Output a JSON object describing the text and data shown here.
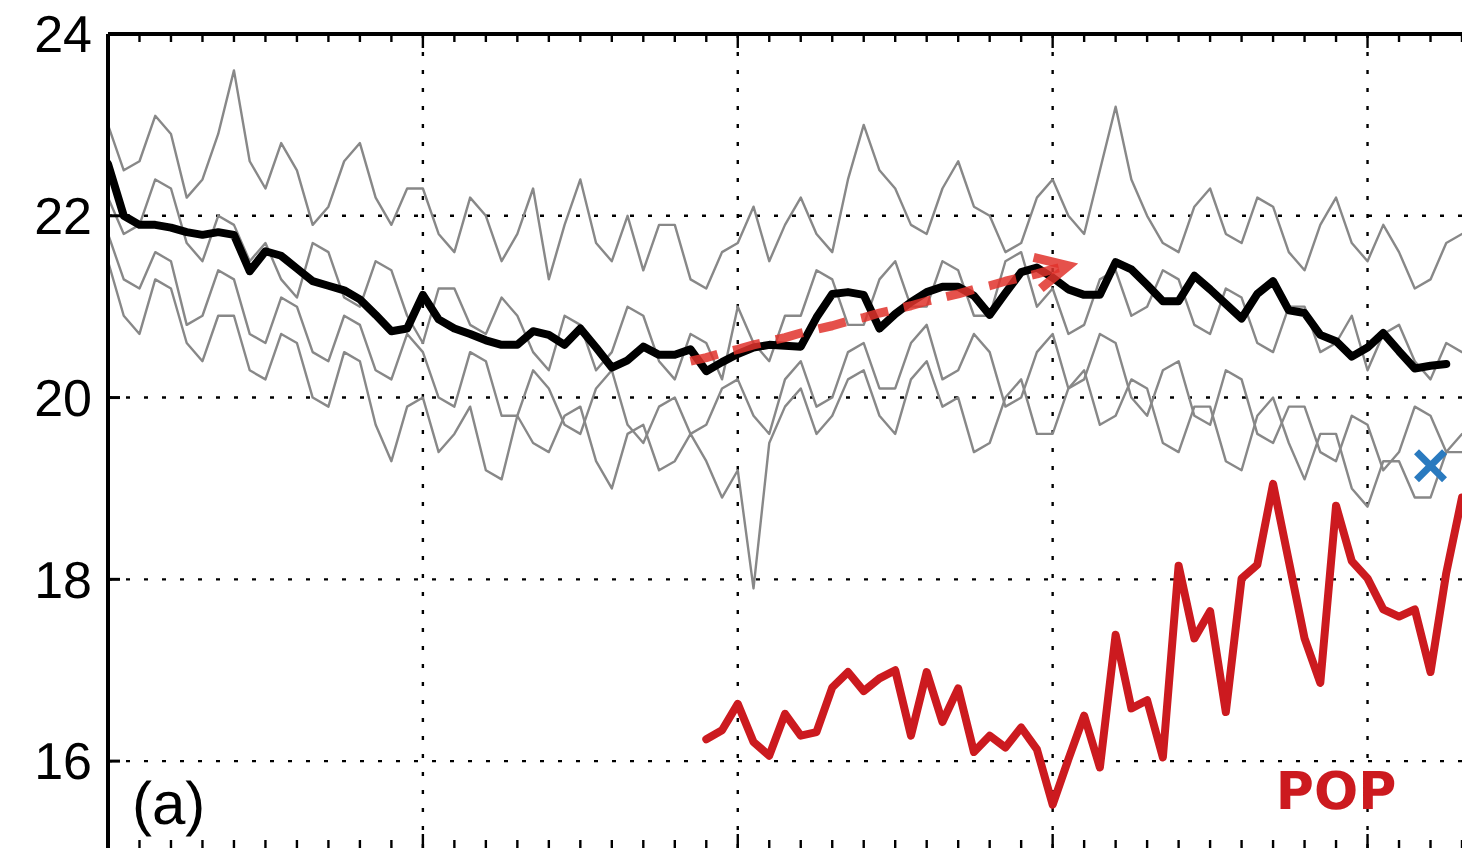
{
  "chart_data": {
    "type": "line",
    "annotations": [
      "(a)"
    ],
    "categories": [
      null,
      null,
      null,
      null,
      null,
      null,
      null,
      null,
      null,
      null,
      null,
      null,
      null,
      null,
      null,
      null,
      null,
      null,
      null,
      null,
      null,
      null,
      null,
      null,
      null,
      null,
      null,
      null,
      null,
      null,
      null,
      null,
      null,
      null,
      null,
      null,
      null,
      null,
      null,
      null,
      null,
      null,
      null,
      null,
      null,
      null,
      null,
      null,
      null,
      null,
      null,
      null,
      null,
      null,
      null,
      null,
      null,
      null,
      null,
      null,
      null,
      null,
      null,
      null,
      null,
      null,
      null,
      null,
      null,
      null,
      null,
      null,
      null,
      null,
      null,
      null,
      null,
      null,
      null,
      null,
      null,
      null,
      null,
      null,
      null,
      null,
      null
    ],
    "series": [
      {
        "color": "#888888",
        "values": [
          23.0,
          22.5,
          22.6,
          23.1,
          22.9,
          22.2,
          22.4,
          22.9,
          23.6,
          22.6,
          22.3,
          22.8,
          22.5,
          21.9,
          22.1,
          22.6,
          22.8,
          22.2,
          21.9,
          22.3,
          22.3,
          21.8,
          21.6,
          22.2,
          22.0,
          21.5,
          21.8,
          22.3,
          21.3,
          21.9,
          22.4,
          21.7,
          21.5,
          22.0,
          21.4,
          21.9,
          21.9,
          21.3,
          21.2,
          21.6,
          21.7,
          22.1,
          21.5,
          21.9,
          22.2,
          21.8,
          21.6,
          22.4,
          23.0,
          22.5,
          22.3,
          21.9,
          21.8,
          22.3,
          22.6,
          22.1,
          22.0,
          21.6,
          21.7,
          22.2,
          22.4,
          22.0,
          21.8,
          22.5,
          23.2,
          22.4,
          22.0,
          21.7,
          21.6,
          22.1,
          22.3,
          21.8,
          21.7,
          22.2,
          22.1,
          21.6,
          21.4,
          21.9,
          22.2,
          21.7,
          21.5,
          21.9,
          21.6,
          21.2,
          21.3,
          21.7,
          21.8
        ]
      },
      {
        "color": "#888888",
        "values": [
          21.8,
          21.3,
          21.2,
          21.6,
          21.5,
          20.8,
          20.9,
          21.4,
          21.3,
          20.7,
          20.6,
          21.1,
          21.0,
          20.5,
          20.4,
          20.9,
          20.8,
          20.3,
          20.2,
          20.7,
          20.5,
          20.0,
          19.9,
          20.5,
          20.4,
          19.8,
          19.8,
          20.3,
          20.1,
          19.7,
          19.6,
          20.1,
          20.3,
          19.7,
          19.5,
          19.9,
          20.0,
          19.6,
          19.7,
          20.1,
          20.2,
          19.8,
          19.6,
          20.2,
          20.4,
          19.9,
          20.0,
          20.5,
          20.6,
          20.1,
          20.1,
          20.6,
          20.8,
          20.2,
          20.3,
          20.7,
          20.5,
          19.9,
          20.0,
          20.5,
          20.7,
          20.1,
          20.2,
          20.7,
          20.6,
          20.0,
          19.8,
          20.3,
          20.4,
          19.8,
          19.7,
          20.3,
          20.2,
          19.6,
          19.5,
          19.9,
          19.9,
          19.4,
          19.3,
          19.8,
          19.7,
          19.2,
          19.4,
          19.9,
          19.8,
          19.4,
          19.6
        ]
      },
      {
        "color": "#888888",
        "values": [
          22.2,
          21.8,
          21.9,
          22.4,
          22.3,
          21.7,
          21.5,
          22.0,
          21.9,
          21.5,
          21.7,
          21.3,
          21.1,
          21.7,
          21.6,
          21.1,
          21.0,
          21.5,
          21.4,
          20.9,
          20.6,
          21.2,
          21.2,
          20.8,
          20.7,
          21.1,
          20.9,
          20.5,
          20.3,
          20.9,
          20.8,
          20.3,
          20.5,
          21.0,
          20.9,
          20.4,
          20.2,
          20.7,
          20.6,
          20.2,
          21.0,
          20.6,
          20.4,
          20.9,
          20.9,
          21.4,
          21.3,
          20.8,
          20.8,
          21.3,
          21.5,
          21.0,
          21.0,
          21.5,
          21.4,
          20.9,
          20.9,
          21.5,
          21.6,
          21.0,
          21.2,
          20.7,
          20.8,
          21.3,
          21.4,
          20.9,
          21.0,
          21.4,
          21.3,
          20.8,
          20.7,
          21.2,
          21.1,
          20.6,
          20.5,
          21.0,
          21.0,
          20.5,
          20.6,
          20.9,
          20.3,
          20.7,
          20.8,
          20.4,
          20.2,
          20.6,
          20.5
        ]
      },
      {
        "color": "#888888",
        "values": [
          21.5,
          20.9,
          20.7,
          21.3,
          21.2,
          20.6,
          20.4,
          20.9,
          20.9,
          20.3,
          20.2,
          20.7,
          20.6,
          20.0,
          19.9,
          20.5,
          20.4,
          19.7,
          19.3,
          19.9,
          20.0,
          19.4,
          19.6,
          19.9,
          19.2,
          19.1,
          19.8,
          19.5,
          19.4,
          19.8,
          19.9,
          19.3,
          19.0,
          19.6,
          19.7,
          19.2,
          19.3,
          19.6,
          19.3,
          18.9,
          19.2,
          17.9,
          19.5,
          19.9,
          20.1,
          19.6,
          19.8,
          20.2,
          20.3,
          19.8,
          19.6,
          20.2,
          20.4,
          19.9,
          20.0,
          19.4,
          19.5,
          20.0,
          20.2,
          19.6,
          19.6,
          20.1,
          20.3,
          19.7,
          19.8,
          20.2,
          20.1,
          19.5,
          19.4,
          19.9,
          19.9,
          19.3,
          19.2,
          19.8,
          20.0,
          19.5,
          19.1,
          19.6,
          19.6,
          19.0,
          18.8,
          19.3,
          19.3,
          18.9,
          18.9,
          19.4,
          19.4
        ]
      },
      {
        "color": "#000000",
        "values": [
          22.57,
          22.0,
          21.9,
          21.9,
          21.87,
          21.82,
          21.79,
          21.82,
          21.79,
          21.39,
          21.61,
          21.56,
          21.42,
          21.28,
          21.23,
          21.18,
          21.08,
          20.91,
          20.73,
          20.76,
          21.13,
          20.86,
          20.76,
          20.7,
          20.63,
          20.58,
          20.58,
          20.73,
          20.69,
          20.58,
          20.76,
          20.55,
          20.33,
          20.41,
          20.56,
          20.47,
          20.47,
          20.53,
          20.29,
          20.39,
          20.48,
          20.55,
          20.58,
          20.57,
          20.56,
          20.88,
          21.14,
          21.16,
          21.13,
          20.76,
          20.92,
          21.05,
          21.16,
          21.22,
          21.22,
          21.12,
          20.91,
          21.15,
          21.38,
          21.43,
          21.32,
          21.19,
          21.13,
          21.13,
          21.49,
          21.41,
          21.24,
          21.06,
          21.06,
          21.34,
          21.19,
          21.03,
          20.87,
          21.14,
          21.28,
          20.96,
          20.93,
          20.69,
          20.62,
          20.45,
          20.55,
          20.71,
          20.51,
          20.32,
          20.35,
          20.37,
          null
        ]
      },
      {
        "name": "POP",
        "color": "#cc1a1f",
        "values": [
          null,
          null,
          null,
          null,
          null,
          null,
          null,
          null,
          null,
          null,
          null,
          null,
          null,
          null,
          null,
          null,
          null,
          null,
          null,
          null,
          null,
          null,
          null,
          null,
          null,
          null,
          null,
          null,
          null,
          null,
          null,
          null,
          null,
          null,
          null,
          null,
          null,
          null,
          16.24,
          16.34,
          16.63,
          16.21,
          16.06,
          16.52,
          16.28,
          16.32,
          16.81,
          16.98,
          16.77,
          16.91,
          17.0,
          16.28,
          16.98,
          16.43,
          16.8,
          16.1,
          16.28,
          16.15,
          16.37,
          16.13,
          15.52,
          16.02,
          16.5,
          15.93,
          17.39,
          16.58,
          16.67,
          16.04,
          18.15,
          17.35,
          17.65,
          16.54,
          18.01,
          18.16,
          19.05,
          18.2,
          17.35,
          16.86,
          18.81,
          18.2,
          18.01,
          17.67,
          17.59,
          17.67,
          16.98,
          18.07,
          18.9
        ]
      },
      {
        "type": "line",
        "line_style": "dashed",
        "color": "#e0332b",
        "values": [
          null,
          null,
          null,
          null,
          null,
          null,
          null,
          null,
          null,
          null,
          null,
          null,
          null,
          null,
          null,
          null,
          null,
          null,
          null,
          null,
          null,
          null,
          null,
          null,
          null,
          null,
          null,
          null,
          null,
          null,
          null,
          null,
          null,
          null,
          null,
          null,
          null,
          20.4,
          20.44,
          20.49,
          20.53,
          20.58,
          20.62,
          20.66,
          20.71,
          20.75,
          20.79,
          20.84,
          20.88,
          20.93,
          20.97,
          21.01,
          21.06,
          21.1,
          21.14,
          21.19,
          21.23,
          21.28,
          21.32,
          21.36,
          21.41,
          21.45,
          null,
          null,
          null,
          null,
          null,
          null,
          null,
          null,
          null,
          null,
          null,
          null,
          null,
          null,
          null,
          null,
          null,
          null,
          null,
          null,
          null,
          null,
          null,
          null,
          null
        ]
      },
      {
        "type": "scatter",
        "marker": "cross",
        "color": "#2a7abf",
        "values": [
          null,
          null,
          null,
          null,
          null,
          null,
          null,
          null,
          null,
          null,
          null,
          null,
          null,
          null,
          null,
          null,
          null,
          null,
          null,
          null,
          null,
          null,
          null,
          null,
          null,
          null,
          null,
          null,
          null,
          null,
          null,
          null,
          null,
          null,
          null,
          null,
          null,
          null,
          null,
          null,
          null,
          null,
          null,
          null,
          null,
          null,
          null,
          null,
          null,
          null,
          null,
          null,
          null,
          null,
          null,
          null,
          null,
          null,
          null,
          null,
          null,
          null,
          null,
          null,
          null,
          null,
          null,
          null,
          null,
          null,
          null,
          null,
          null,
          null,
          null,
          null,
          null,
          null,
          null,
          null,
          null,
          null,
          null,
          null,
          19.25,
          null,
          null
        ]
      }
    ],
    "ylim": [
      15,
      24
    ],
    "yticks": [
      16,
      18,
      20,
      22,
      24
    ],
    "grid": true,
    "tick_labels": "y"
  }
}
